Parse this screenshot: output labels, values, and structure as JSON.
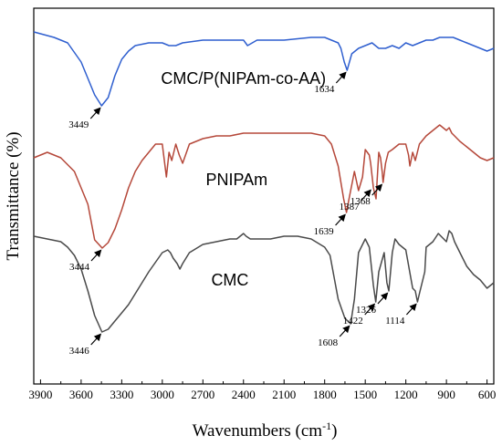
{
  "chart_data": {
    "type": "line",
    "xlabel": "Wavenumbers (cm",
    "xlabel_sup": "-1",
    "xlabel_tail": ")",
    "ylabel": "Transmittance (%)",
    "xlim": [
      3950,
      550
    ],
    "x_reversed": true,
    "x_ticks": [
      "3900",
      "3600",
      "3300",
      "3000",
      "2700",
      "2400",
      "2100",
      "1800",
      "1500",
      "1200",
      "900",
      "600"
    ],
    "y_ticks": [],
    "grid": false,
    "series": [
      {
        "name": "CMC/P(NIPAm-co-AA)",
        "color": "#2f5fcf",
        "x": [
          3950,
          3800,
          3700,
          3600,
          3550,
          3500,
          3449,
          3400,
          3350,
          3300,
          3250,
          3200,
          3100,
          3000,
          2950,
          2900,
          2850,
          2700,
          2500,
          2400,
          2370,
          2300,
          2100,
          1900,
          1800,
          1750,
          1700,
          1680,
          1655,
          1634,
          1600,
          1550,
          1500,
          1450,
          1400,
          1350,
          1300,
          1250,
          1200,
          1150,
          1100,
          1050,
          1000,
          950,
          900,
          850,
          800,
          750,
          700,
          650,
          600,
          550
        ],
        "y": [
          5,
          3,
          1,
          -6,
          -12,
          -18,
          -22,
          -19,
          -11,
          -5,
          -2,
          0,
          1,
          1,
          0,
          0,
          1,
          2,
          2,
          2,
          0,
          2,
          2,
          3,
          3,
          2,
          1,
          -1,
          -6,
          -9,
          -3,
          -1,
          0,
          1,
          -1,
          -1,
          0,
          -1,
          1,
          0,
          1,
          2,
          2,
          3,
          3,
          3,
          2,
          1,
          0,
          -1,
          -2,
          -1
        ]
      },
      {
        "name": "PNIPAm",
        "color": "#b5483a",
        "x": [
          3950,
          3850,
          3750,
          3650,
          3550,
          3500,
          3444,
          3400,
          3350,
          3300,
          3250,
          3200,
          3150,
          3100,
          3050,
          3000,
          2980,
          2970,
          2950,
          2930,
          2900,
          2875,
          2850,
          2800,
          2700,
          2600,
          2500,
          2400,
          2300,
          2200,
          2100,
          2000,
          1900,
          1800,
          1750,
          1700,
          1660,
          1639,
          1620,
          1580,
          1550,
          1520,
          1500,
          1470,
          1460,
          1440,
          1420,
          1400,
          1387,
          1375,
          1368,
          1350,
          1330,
          1300,
          1250,
          1200,
          1180,
          1170,
          1150,
          1130,
          1100,
          1050,
          1000,
          950,
          900,
          880,
          860,
          840,
          800,
          750,
          700,
          650,
          600,
          550
        ],
        "y": [
          -5,
          -3,
          -5,
          -10,
          -22,
          -35,
          -38,
          -36,
          -31,
          -24,
          -16,
          -10,
          -6,
          -3,
          0,
          0,
          -8,
          -12,
          -3,
          -6,
          0,
          -4,
          -7,
          0,
          2,
          3,
          3,
          4,
          4,
          4,
          4,
          4,
          4,
          3,
          0,
          -8,
          -20,
          -25,
          -20,
          -10,
          -17,
          -12,
          -2,
          -4,
          -7,
          -16,
          -20,
          -3,
          -5,
          -10,
          -14,
          -7,
          -3,
          -2,
          0,
          0,
          -4,
          -8,
          -3,
          -6,
          0,
          3,
          5,
          7,
          5,
          6,
          4,
          3,
          1,
          -1,
          -3,
          -5,
          -6,
          -5
        ]
      },
      {
        "name": "CMC",
        "color": "#4a4a4a",
        "x": [
          3950,
          3850,
          3750,
          3700,
          3650,
          3600,
          3550,
          3500,
          3446,
          3400,
          3350,
          3300,
          3250,
          3200,
          3100,
          3000,
          2960,
          2940,
          2920,
          2890,
          2870,
          2850,
          2800,
          2700,
          2600,
          2500,
          2450,
          2400,
          2380,
          2350,
          2300,
          2200,
          2100,
          2000,
          1900,
          1800,
          1760,
          1700,
          1650,
          1608,
          1580,
          1550,
          1500,
          1470,
          1440,
          1422,
          1400,
          1360,
          1340,
          1326,
          1300,
          1280,
          1250,
          1200,
          1150,
          1130,
          1114,
          1100,
          1060,
          1050,
          1000,
          960,
          900,
          880,
          860,
          840,
          800,
          750,
          700,
          650,
          600,
          550
        ],
        "y": [
          1,
          0,
          -1,
          -3,
          -6,
          -11,
          -19,
          -28,
          -34,
          -33,
          -30,
          -27,
          -24,
          -20,
          -12,
          -5,
          -4,
          -5,
          -7,
          -9,
          -11,
          -9,
          -5,
          -2,
          -1,
          0,
          0,
          2,
          1,
          0,
          0,
          0,
          1,
          1,
          0,
          -3,
          -6,
          -22,
          -29,
          -31,
          -22,
          -5,
          0,
          -3,
          -17,
          -23,
          -12,
          -5,
          -16,
          -19,
          -5,
          0,
          -2,
          -4,
          -18,
          -19,
          -23,
          -20,
          -12,
          -3,
          -1,
          2,
          -1,
          3,
          2,
          -1,
          -5,
          -10,
          -13,
          -15,
          -18,
          -16
        ]
      }
    ],
    "labels": [
      {
        "text": "CMC/P(NIPAm-co-AA)",
        "series": 0,
        "x": 2400,
        "y": -14
      },
      {
        "text": "PNIPAm",
        "series": 1,
        "x": 2450,
        "y": -15
      },
      {
        "text": "CMC",
        "series": 2,
        "x": 2500,
        "y": -17
      }
    ],
    "annotations": [
      {
        "text": "3449",
        "series": 0,
        "x": 3449,
        "y": -22
      },
      {
        "text": "1634",
        "series": 0,
        "x": 1634,
        "y": -9
      },
      {
        "text": "3444",
        "series": 1,
        "x": 3444,
        "y": -38
      },
      {
        "text": "1639",
        "series": 1,
        "x": 1639,
        "y": -25
      },
      {
        "text": "1387",
        "series": 1,
        "x": 1450,
        "y": -16
      },
      {
        "text": "1368",
        "series": 1,
        "x": 1368,
        "y": -14
      },
      {
        "text": "3446",
        "series": 2,
        "x": 3446,
        "y": -34
      },
      {
        "text": "1608",
        "series": 2,
        "x": 1608,
        "y": -31
      },
      {
        "text": "1422",
        "series": 2,
        "x": 1422,
        "y": -23
      },
      {
        "text": "1326",
        "series": 2,
        "x": 1326,
        "y": -19
      },
      {
        "text": "1114",
        "series": 2,
        "x": 1114,
        "y": -23
      }
    ]
  }
}
